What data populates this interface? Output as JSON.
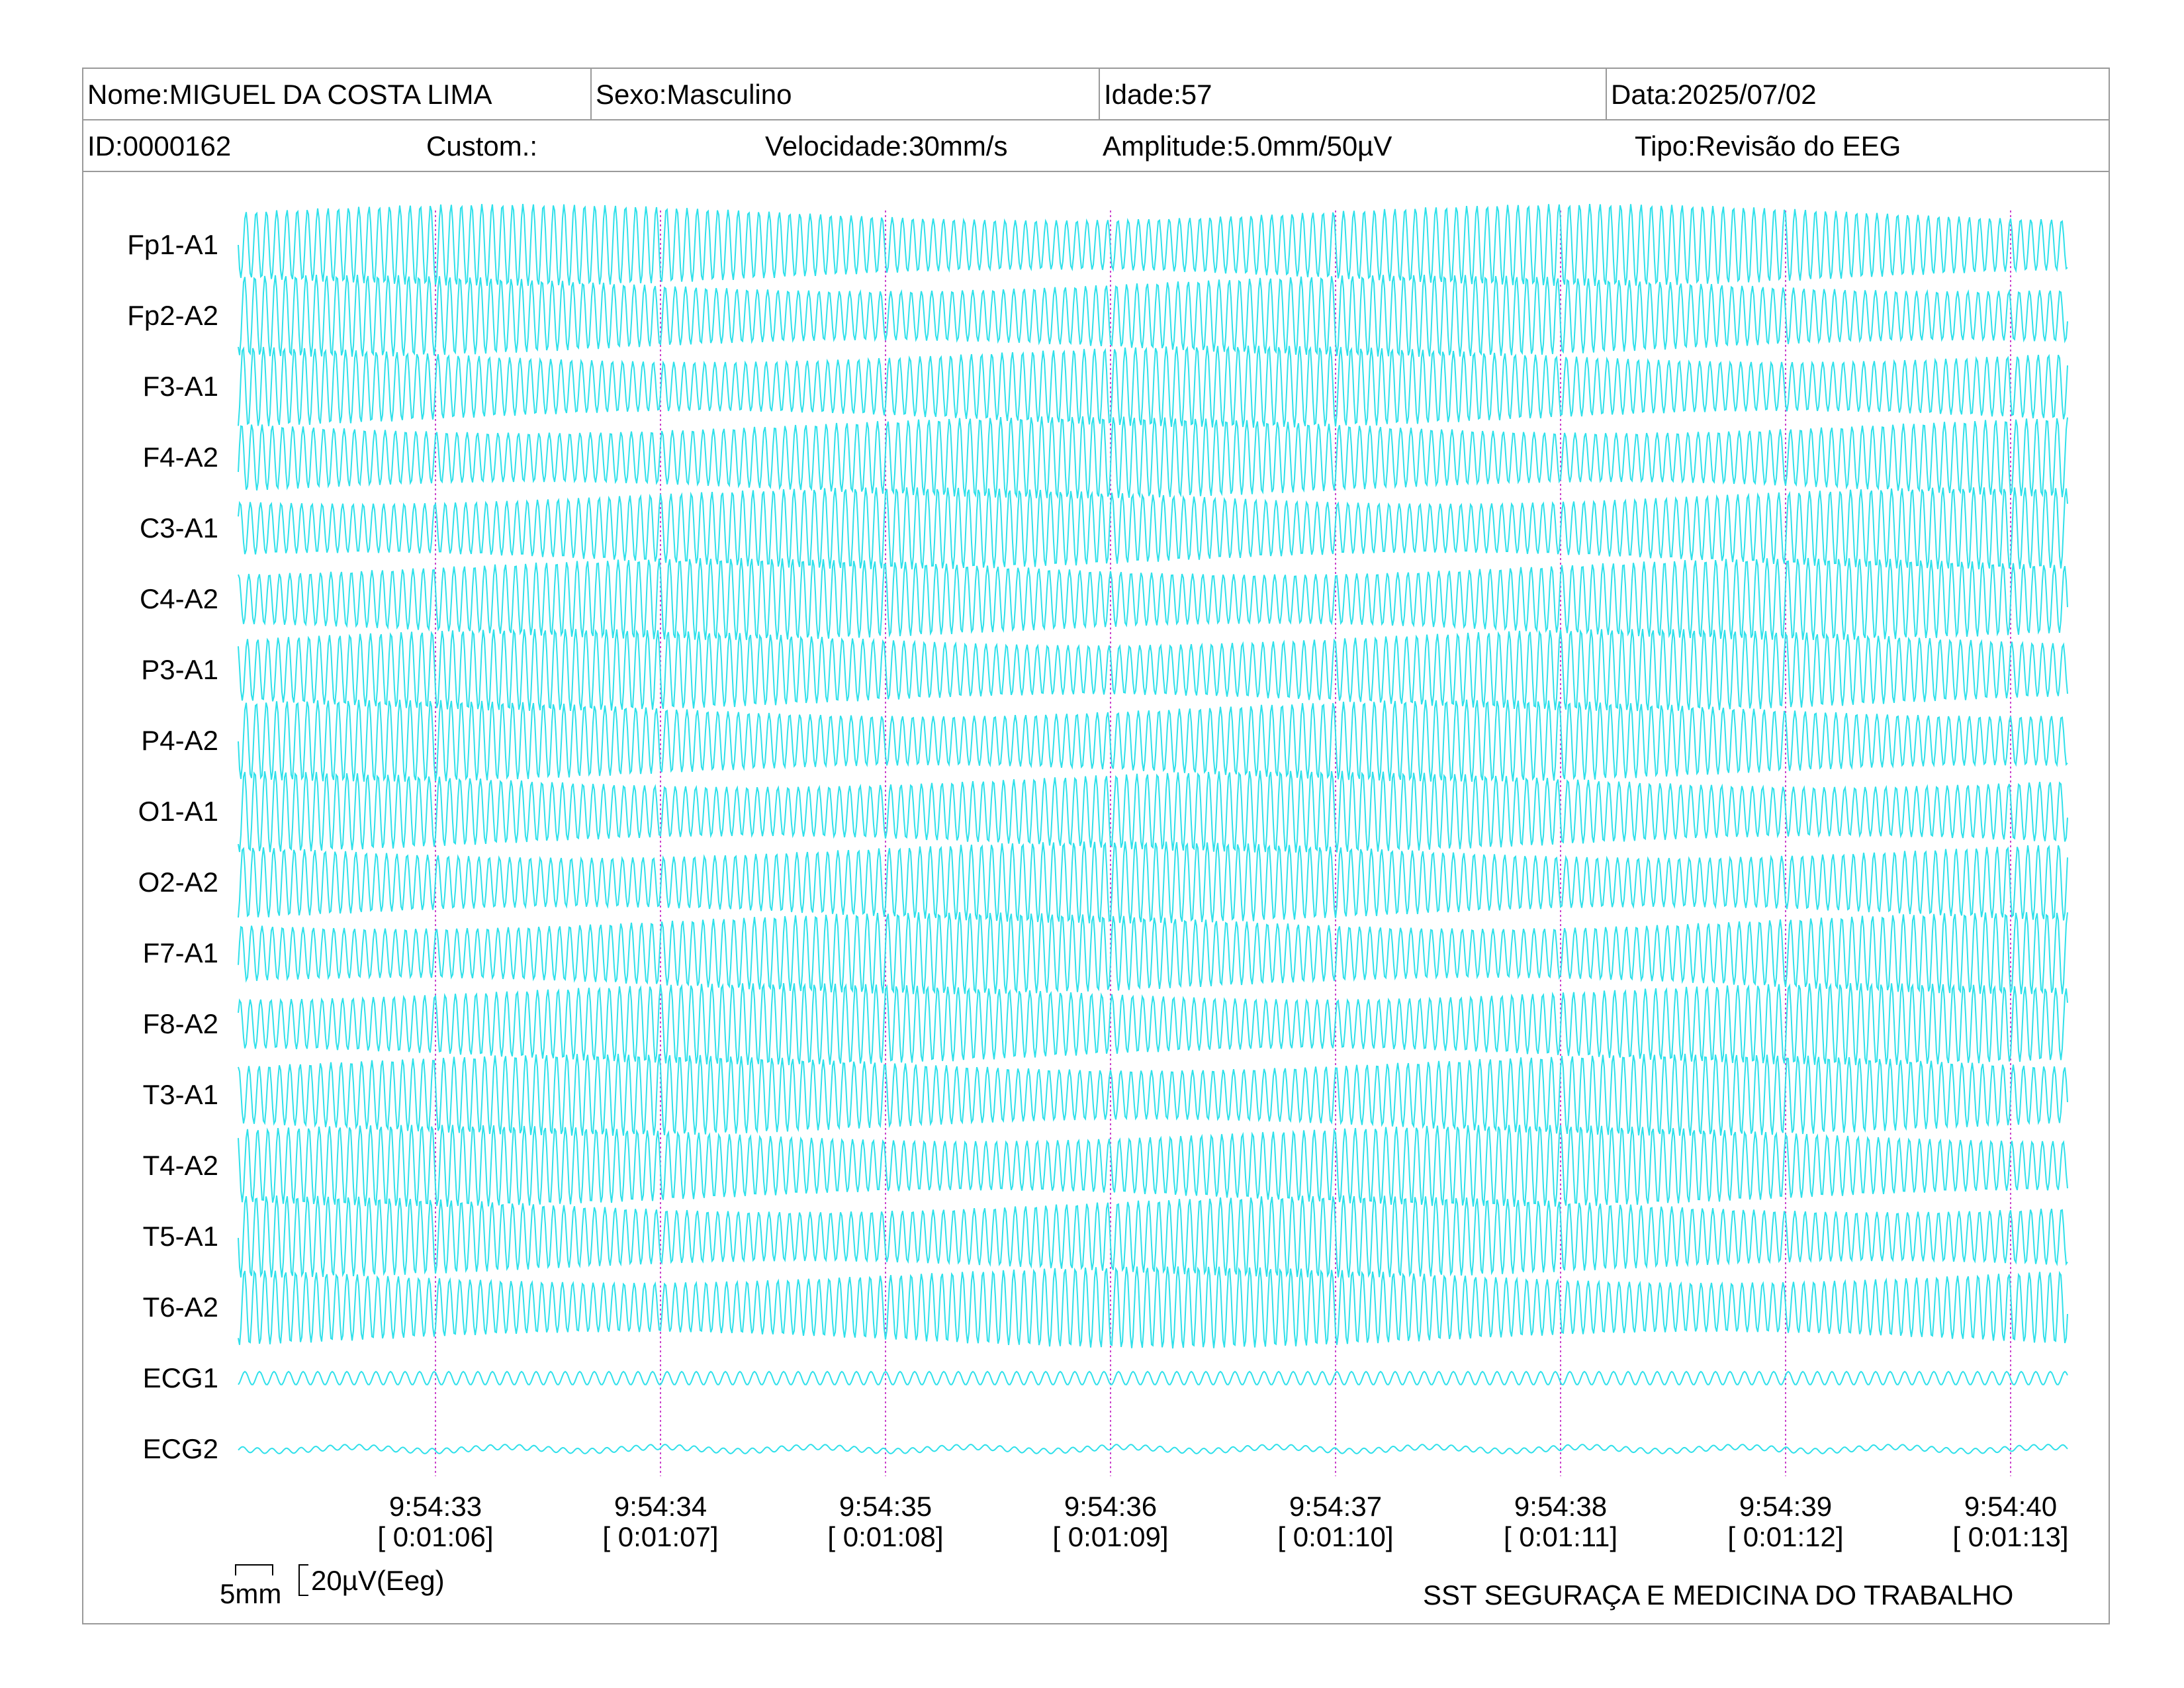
{
  "header": {
    "row1": {
      "nome": "Nome:MIGUEL DA COSTA LIMA",
      "sexo": "Sexo:Masculino",
      "idade": "Idade:57",
      "data": "Data:2025/07/02"
    },
    "row2": {
      "id": "ID:0000162",
      "custom": "Custom.:",
      "velocidade": "Velocidade:30mm/s",
      "amplitude": "Amplitude:5.0mm/50µV",
      "tipo": "Tipo:Revisão do EEG"
    }
  },
  "channels": [
    "Fp1-A1",
    "Fp2-A2",
    "F3-A1",
    "F4-A2",
    "C3-A1",
    "C4-A2",
    "P3-A1",
    "P4-A2",
    "O1-A1",
    "O2-A2",
    "F7-A1",
    "F8-A2",
    "T3-A1",
    "T4-A2",
    "T5-A1",
    "T6-A2",
    "ECG1",
    "ECG2"
  ],
  "time_markers": [
    {
      "clock": "9:54:33",
      "elapsed": "[ 0:01:06]"
    },
    {
      "clock": "9:54:34",
      "elapsed": "[ 0:01:07]"
    },
    {
      "clock": "9:54:35",
      "elapsed": "[ 0:01:08]"
    },
    {
      "clock": "9:54:36",
      "elapsed": "[ 0:01:09]"
    },
    {
      "clock": "9:54:37",
      "elapsed": "[ 0:01:10]"
    },
    {
      "clock": "9:54:38",
      "elapsed": "[ 0:01:11]"
    },
    {
      "clock": "9:54:39",
      "elapsed": "[ 0:01:12]"
    },
    {
      "clock": "9:54:40",
      "elapsed": "[ 0:01:13]"
    }
  ],
  "scale": {
    "length_label": "5mm",
    "amplitude_label": "20µV(Eeg)"
  },
  "footer": {
    "institution": "SST SEGURAÇA E MEDICINA DO TRABALHO"
  },
  "colors": {
    "trace": "#2fe0ea",
    "marker": "#cc44cc",
    "border": "#9a9a9a"
  }
}
